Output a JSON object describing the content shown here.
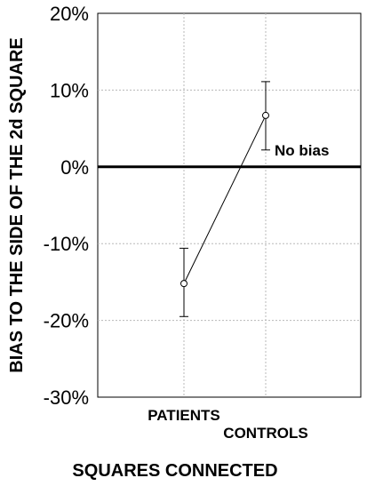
{
  "chart_data": {
    "type": "line",
    "title": "",
    "xlabel": "SQUARES CONNECTED",
    "ylabel": "BIAS TO THE SIDE OF THE 2d SQUARE",
    "categories": [
      "PATIENTS",
      "CONTROLS"
    ],
    "values": [
      -15.2,
      6.7
    ],
    "error_low": [
      -19.5,
      2.2
    ],
    "error_high": [
      -10.6,
      11.1
    ],
    "ylim": [
      -30,
      20
    ],
    "yticks": [
      20,
      10,
      0,
      -10,
      -20,
      -30
    ],
    "ytick_labels": [
      "20%",
      "10%",
      "0%",
      "-10%",
      "-20%",
      "-30%"
    ],
    "grid": true,
    "reference_line": {
      "y": 0,
      "label": "No bias"
    },
    "colors": {
      "line": "#000000",
      "grid": "#b8b8b8"
    }
  }
}
